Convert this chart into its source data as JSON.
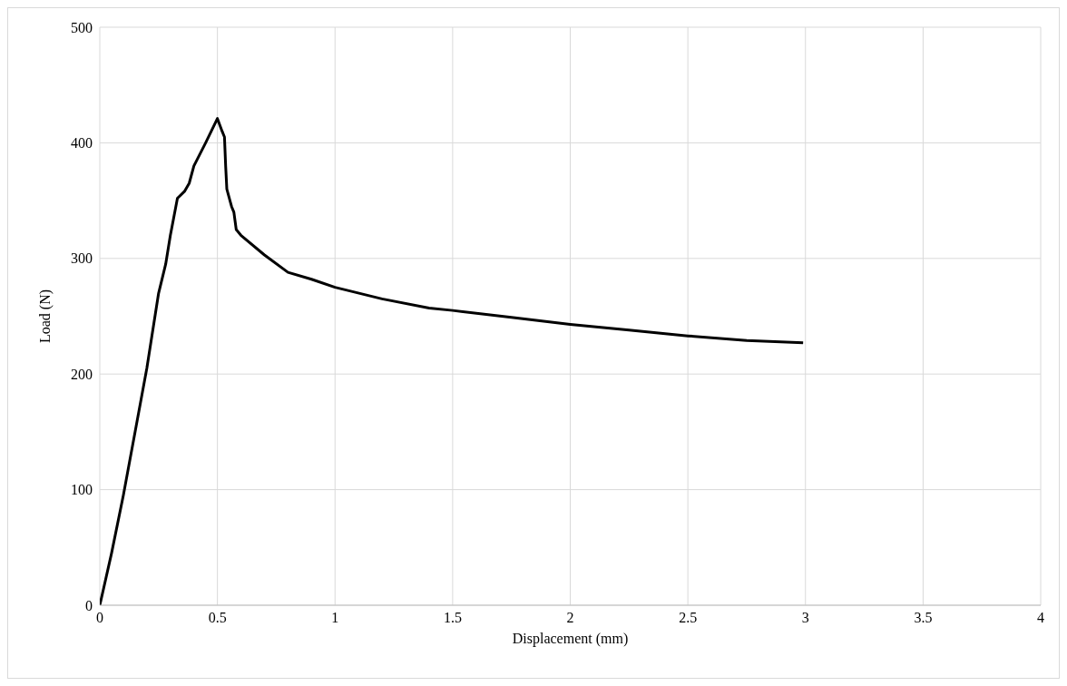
{
  "chart_data": {
    "type": "line",
    "xlabel": "Displacement (mm)",
    "ylabel": "Load (N)",
    "x": [
      0,
      0.05,
      0.1,
      0.15,
      0.2,
      0.25,
      0.28,
      0.3,
      0.33,
      0.36,
      0.38,
      0.4,
      0.45,
      0.5,
      0.52,
      0.53,
      0.535,
      0.54,
      0.56,
      0.57,
      0.58,
      0.6,
      0.7,
      0.8,
      0.9,
      1.0,
      1.2,
      1.4,
      1.5,
      1.75,
      2.0,
      2.25,
      2.5,
      2.75,
      2.99
    ],
    "series": [
      {
        "color": "#000000",
        "values": [
          0,
          45,
          95,
          150,
          205,
          270,
          295,
          320,
          352,
          358,
          365,
          380,
          400,
          421,
          410,
          405,
          380,
          360,
          345,
          340,
          325,
          320,
          303,
          288,
          282,
          275,
          265,
          257,
          255,
          249,
          243,
          238,
          233,
          229,
          227
        ]
      }
    ],
    "xlim": [
      0,
      4
    ],
    "xticks": [
      0,
      0.5,
      1,
      1.5,
      2,
      2.5,
      3,
      3.5,
      4
    ],
    "ylim": [
      0,
      500
    ],
    "yticks": [
      0,
      100,
      200,
      300,
      400,
      500
    ],
    "grid": true,
    "legend": false,
    "marker": "none",
    "line_style": "solid"
  }
}
